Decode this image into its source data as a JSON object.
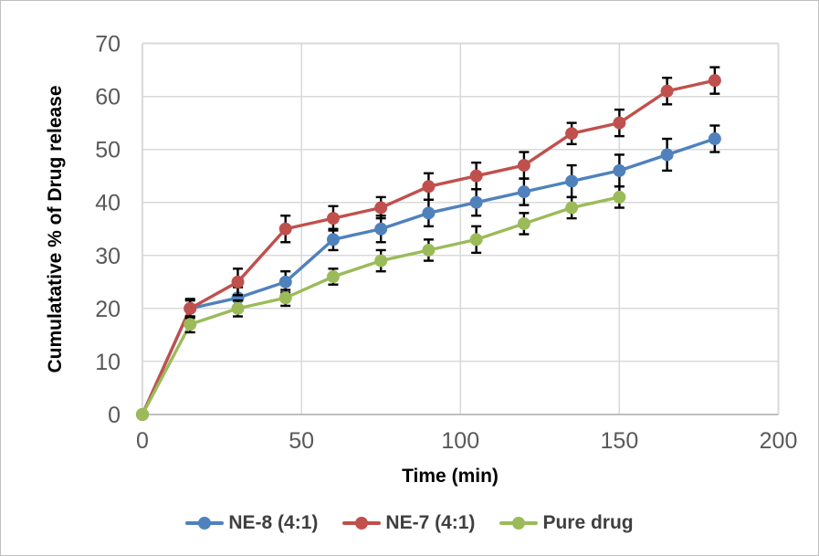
{
  "chart_data": {
    "type": "line",
    "title": "",
    "xlabel": "Time (min)",
    "ylabel": "Cumulatative % of Drug release",
    "xlim": [
      0,
      200
    ],
    "ylim": [
      0,
      70
    ],
    "x_ticks": [
      0,
      50,
      100,
      150,
      200
    ],
    "y_ticks": [
      0,
      10,
      20,
      30,
      40,
      50,
      60,
      70
    ],
    "grid": true,
    "legend_position": "bottom",
    "error_bars": true,
    "series": [
      {
        "name": "NE-8 (4:1)",
        "color": "#4F81BD",
        "x": [
          0,
          15,
          30,
          45,
          60,
          75,
          90,
          105,
          120,
          135,
          150,
          165,
          180
        ],
        "y": [
          0,
          20,
          22,
          25,
          33,
          35,
          38,
          40,
          42,
          44,
          46,
          49,
          52
        ],
        "err": [
          0,
          1.5,
          2,
          2,
          2,
          2.5,
          2.5,
          2.5,
          2.5,
          3,
          3,
          3,
          2.5
        ]
      },
      {
        "name": "NE-7 (4:1)",
        "color": "#C0504D",
        "x": [
          0,
          15,
          30,
          45,
          60,
          75,
          90,
          105,
          120,
          135,
          150,
          165,
          180
        ],
        "y": [
          0,
          20,
          25,
          35,
          37,
          39,
          43,
          45,
          47,
          53,
          55,
          61,
          63
        ],
        "err": [
          0,
          1.8,
          2.5,
          2.5,
          2.3,
          2,
          2.5,
          2.5,
          2.5,
          2,
          2.5,
          2.5,
          2.5
        ]
      },
      {
        "name": "Pure drug",
        "color": "#9BBB59",
        "x": [
          0,
          15,
          30,
          45,
          60,
          75,
          90,
          105,
          120,
          135,
          150
        ],
        "y": [
          0,
          17,
          20,
          22,
          26,
          29,
          31,
          33,
          36,
          39,
          41
        ],
        "err": [
          0,
          1.5,
          1.5,
          1.5,
          1.5,
          2,
          2,
          2.5,
          2,
          2,
          2
        ]
      }
    ]
  },
  "colors": {
    "gridline": "#D9D9D9",
    "axis_line": "#BFBFBF",
    "tick_label": "#595959",
    "axis_title": "#000000",
    "error_bar": "#000000",
    "background": "#FFFFFF",
    "border": "#BFBFBF"
  }
}
